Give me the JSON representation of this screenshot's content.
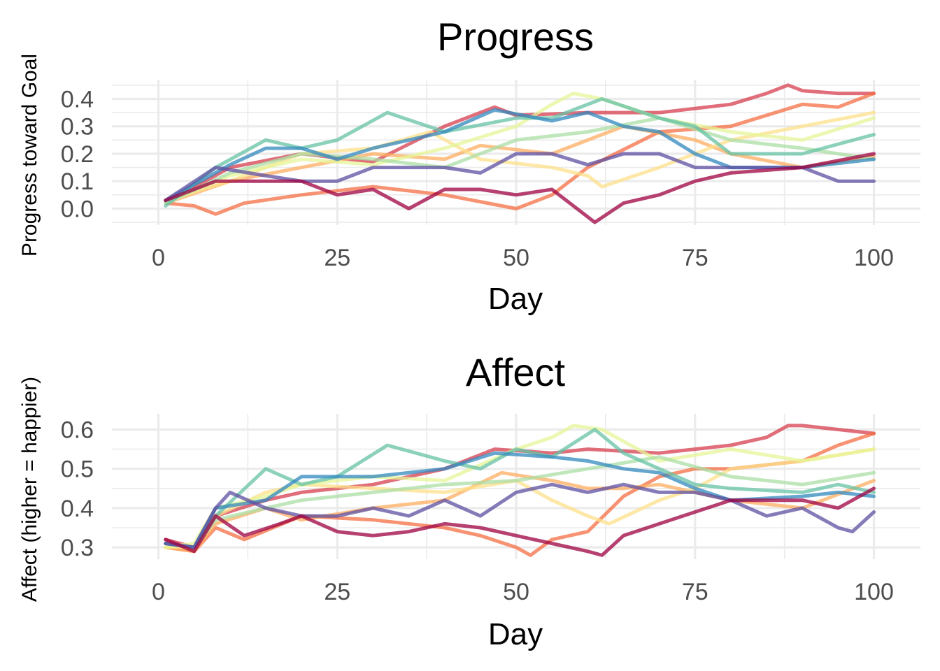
{
  "chart_data": [
    {
      "type": "line",
      "title": "Progress",
      "xlabel": "Day",
      "ylabel": "Progress toward Goal",
      "xlim": [
        -6.5,
        106.5
      ],
      "ylim": [
        -0.06,
        0.47
      ],
      "xticks": [
        0,
        25,
        50,
        75,
        100
      ],
      "xtick_labels": [
        "0",
        "25",
        "50",
        "75",
        "100"
      ],
      "yticks": [
        0.0,
        0.1,
        0.2,
        0.3,
        0.4
      ],
      "ytick_labels": [
        "0.0",
        "0.1",
        "0.2",
        "0.3",
        "0.4"
      ],
      "grid": true,
      "legend": "none",
      "series": [
        {
          "color": "#d53e4f",
          "x": [
            1,
            10,
            20,
            30,
            40,
            47,
            50,
            60,
            70,
            80,
            85,
            88,
            90,
            95,
            100
          ],
          "values": [
            0.02,
            0.15,
            0.2,
            0.17,
            0.3,
            0.37,
            0.34,
            0.35,
            0.35,
            0.38,
            0.42,
            0.45,
            0.43,
            0.42,
            0.42
          ]
        },
        {
          "color": "#f46d43",
          "x": [
            1,
            5,
            8,
            12,
            20,
            30,
            40,
            50,
            55,
            60,
            70,
            80,
            90,
            95,
            100
          ],
          "values": [
            0.02,
            0.01,
            -0.02,
            0.02,
            0.05,
            0.08,
            0.05,
            0.0,
            0.05,
            0.15,
            0.28,
            0.3,
            0.38,
            0.37,
            0.42
          ]
        },
        {
          "color": "#fdae61",
          "x": [
            1,
            10,
            20,
            30,
            40,
            45,
            55,
            65,
            75,
            80,
            90,
            100
          ],
          "values": [
            0.02,
            0.1,
            0.15,
            0.2,
            0.18,
            0.23,
            0.2,
            0.3,
            0.25,
            0.2,
            0.15,
            0.19
          ]
        },
        {
          "color": "#fee08b",
          "x": [
            1,
            10,
            20,
            30,
            38,
            45,
            55,
            60,
            62,
            70,
            80,
            90,
            100
          ],
          "values": [
            0.03,
            0.1,
            0.2,
            0.22,
            0.28,
            0.18,
            0.15,
            0.12,
            0.08,
            0.15,
            0.25,
            0.3,
            0.35
          ]
        },
        {
          "color": "#e6f598",
          "x": [
            1,
            10,
            20,
            30,
            40,
            50,
            55,
            58,
            62,
            70,
            80,
            90,
            100
          ],
          "values": [
            0.02,
            0.12,
            0.18,
            0.16,
            0.22,
            0.3,
            0.38,
            0.42,
            0.4,
            0.33,
            0.28,
            0.25,
            0.33
          ]
        },
        {
          "color": "#abdda4",
          "x": [
            1,
            10,
            20,
            30,
            40,
            50,
            60,
            70,
            80,
            90,
            100
          ],
          "values": [
            0.02,
            0.13,
            0.2,
            0.18,
            0.15,
            0.25,
            0.28,
            0.33,
            0.25,
            0.22,
            0.18
          ]
        },
        {
          "color": "#66c2a5",
          "x": [
            1,
            8,
            15,
            20,
            25,
            32,
            40,
            50,
            55,
            62,
            70,
            75,
            80,
            90,
            100
          ],
          "values": [
            0.01,
            0.15,
            0.25,
            0.22,
            0.25,
            0.35,
            0.28,
            0.33,
            0.33,
            0.4,
            0.33,
            0.3,
            0.2,
            0.2,
            0.27
          ]
        },
        {
          "color": "#3288bd",
          "x": [
            1,
            10,
            15,
            20,
            25,
            30,
            40,
            47,
            55,
            60,
            65,
            70,
            75,
            80,
            90,
            100
          ],
          "values": [
            0.03,
            0.16,
            0.22,
            0.22,
            0.18,
            0.22,
            0.28,
            0.36,
            0.32,
            0.35,
            0.3,
            0.28,
            0.2,
            0.15,
            0.15,
            0.18
          ]
        },
        {
          "color": "#5e4fa2",
          "x": [
            1,
            8,
            15,
            20,
            25,
            30,
            40,
            45,
            50,
            55,
            60,
            65,
            70,
            75,
            80,
            90,
            95,
            100
          ],
          "values": [
            0.03,
            0.15,
            0.12,
            0.1,
            0.1,
            0.15,
            0.15,
            0.13,
            0.2,
            0.2,
            0.16,
            0.2,
            0.2,
            0.15,
            0.15,
            0.15,
            0.1,
            0.1
          ]
        },
        {
          "color": "#9e0142",
          "x": [
            1,
            8,
            15,
            20,
            25,
            30,
            35,
            40,
            45,
            50,
            55,
            61,
            65,
            70,
            75,
            80,
            90,
            100
          ],
          "values": [
            0.03,
            0.1,
            0.1,
            0.1,
            0.05,
            0.07,
            0.0,
            0.07,
            0.07,
            0.05,
            0.07,
            -0.05,
            0.02,
            0.05,
            0.1,
            0.13,
            0.15,
            0.2
          ]
        }
      ]
    },
    {
      "type": "line",
      "title": "Affect",
      "xlabel": "Day",
      "ylabel": "Affect (higher = happier)",
      "xlim": [
        -6.5,
        106.5
      ],
      "ylim": [
        0.27,
        0.64
      ],
      "xticks": [
        0,
        25,
        50,
        75,
        100
      ],
      "xtick_labels": [
        "0",
        "25",
        "50",
        "75",
        "100"
      ],
      "yticks": [
        0.3,
        0.4,
        0.5,
        0.6
      ],
      "ytick_labels": [
        "0.3",
        "0.4",
        "0.5",
        "0.6"
      ],
      "grid": true,
      "legend": "none",
      "series": [
        {
          "color": "#d53e4f",
          "x": [
            1,
            5,
            8,
            15,
            20,
            30,
            40,
            47,
            55,
            60,
            70,
            80,
            85,
            88,
            90,
            95,
            100
          ],
          "values": [
            0.32,
            0.3,
            0.38,
            0.42,
            0.44,
            0.46,
            0.5,
            0.55,
            0.54,
            0.55,
            0.54,
            0.56,
            0.58,
            0.61,
            0.61,
            0.6,
            0.59
          ]
        },
        {
          "color": "#f46d43",
          "x": [
            1,
            5,
            8,
            12,
            20,
            30,
            40,
            45,
            50,
            52,
            55,
            60,
            65,
            70,
            75,
            80,
            90,
            95,
            100
          ],
          "values": [
            0.3,
            0.29,
            0.35,
            0.32,
            0.38,
            0.37,
            0.35,
            0.33,
            0.3,
            0.28,
            0.32,
            0.34,
            0.43,
            0.48,
            0.5,
            0.5,
            0.52,
            0.56,
            0.59
          ]
        },
        {
          "color": "#fdae61",
          "x": [
            1,
            5,
            8,
            15,
            20,
            30,
            40,
            48,
            55,
            60,
            65,
            70,
            75,
            80,
            90,
            100
          ],
          "values": [
            0.3,
            0.29,
            0.36,
            0.4,
            0.37,
            0.4,
            0.42,
            0.49,
            0.47,
            0.45,
            0.45,
            0.46,
            0.44,
            0.42,
            0.4,
            0.47
          ]
        },
        {
          "color": "#fee08b",
          "x": [
            1,
            5,
            8,
            15,
            20,
            30,
            40,
            50,
            55,
            60,
            63,
            70,
            75,
            80,
            90,
            100
          ],
          "values": [
            0.3,
            0.3,
            0.38,
            0.44,
            0.46,
            0.45,
            0.44,
            0.47,
            0.42,
            0.38,
            0.36,
            0.42,
            0.45,
            0.5,
            0.52,
            0.55
          ]
        },
        {
          "color": "#e6f598",
          "x": [
            1,
            5,
            8,
            15,
            20,
            30,
            40,
            50,
            55,
            58,
            62,
            70,
            80,
            90,
            100
          ],
          "values": [
            0.3,
            0.31,
            0.4,
            0.43,
            0.46,
            0.48,
            0.47,
            0.55,
            0.58,
            0.61,
            0.6,
            0.52,
            0.55,
            0.52,
            0.55
          ]
        },
        {
          "color": "#abdda4",
          "x": [
            1,
            5,
            8,
            15,
            20,
            30,
            40,
            50,
            60,
            70,
            80,
            90,
            100
          ],
          "values": [
            0.31,
            0.3,
            0.37,
            0.4,
            0.42,
            0.44,
            0.46,
            0.47,
            0.5,
            0.53,
            0.48,
            0.46,
            0.49
          ]
        },
        {
          "color": "#66c2a5",
          "x": [
            1,
            5,
            8,
            15,
            20,
            25,
            32,
            40,
            45,
            50,
            55,
            61,
            65,
            70,
            75,
            80,
            90,
            95,
            100
          ],
          "values": [
            0.31,
            0.3,
            0.38,
            0.5,
            0.46,
            0.48,
            0.56,
            0.52,
            0.5,
            0.55,
            0.53,
            0.6,
            0.54,
            0.5,
            0.46,
            0.45,
            0.44,
            0.46,
            0.44
          ]
        },
        {
          "color": "#3288bd",
          "x": [
            1,
            5,
            8,
            15,
            20,
            30,
            40,
            47,
            55,
            60,
            65,
            70,
            75,
            80,
            90,
            95,
            100
          ],
          "values": [
            0.31,
            0.3,
            0.4,
            0.42,
            0.48,
            0.48,
            0.5,
            0.54,
            0.53,
            0.52,
            0.5,
            0.49,
            0.45,
            0.42,
            0.43,
            0.44,
            0.43
          ]
        },
        {
          "color": "#5e4fa2",
          "x": [
            1,
            5,
            8,
            10,
            15,
            20,
            25,
            30,
            35,
            40,
            45,
            50,
            55,
            60,
            65,
            70,
            75,
            80,
            85,
            90,
            95,
            97,
            100
          ],
          "values": [
            0.31,
            0.3,
            0.4,
            0.44,
            0.4,
            0.38,
            0.38,
            0.4,
            0.38,
            0.42,
            0.38,
            0.44,
            0.46,
            0.44,
            0.46,
            0.44,
            0.44,
            0.42,
            0.38,
            0.4,
            0.35,
            0.34,
            0.39
          ]
        },
        {
          "color": "#9e0142",
          "x": [
            1,
            5,
            8,
            12,
            17,
            20,
            25,
            30,
            35,
            40,
            45,
            50,
            55,
            60,
            62,
            65,
            70,
            75,
            80,
            90,
            95,
            100
          ],
          "values": [
            0.32,
            0.29,
            0.38,
            0.33,
            0.36,
            0.38,
            0.34,
            0.33,
            0.34,
            0.36,
            0.35,
            0.33,
            0.31,
            0.29,
            0.28,
            0.33,
            0.36,
            0.39,
            0.42,
            0.42,
            0.4,
            0.45
          ]
        }
      ]
    }
  ]
}
